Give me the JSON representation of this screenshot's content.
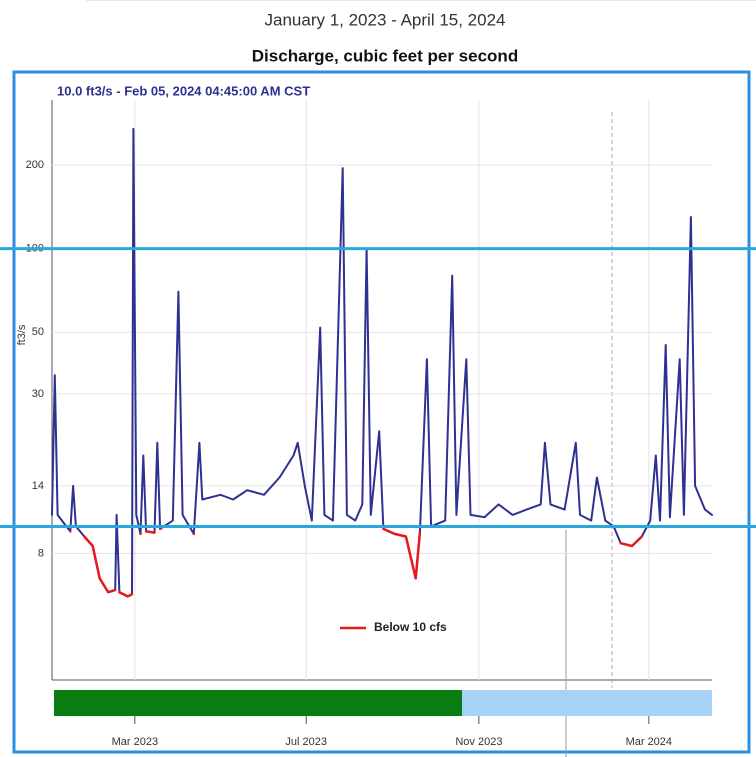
{
  "chart_data": {
    "type": "line",
    "title": "January 1, 2023 - April 15, 2024",
    "subtitle": "Discharge, cubic feet per second",
    "annotation": "10.0 ft3/s - Feb 05, 2024 04:45:00 AM CST",
    "y_label": "ft3/s",
    "y_scale": "log",
    "grid": true,
    "legend": "bottom",
    "x": [
      "2023-01-01",
      "2023-01-03",
      "2023-01-05",
      "2023-01-10",
      "2023-01-14",
      "2023-01-16",
      "2023-01-18",
      "2023-01-24",
      "2023-01-30",
      "2023-02-04",
      "2023-02-10",
      "2023-02-15",
      "2023-02-16",
      "2023-02-18",
      "2023-02-24",
      "2023-02-27",
      "2023-02-28",
      "2023-03-02",
      "2023-03-05",
      "2023-03-07",
      "2023-03-09",
      "2023-03-15",
      "2023-03-17",
      "2023-03-19",
      "2023-03-28",
      "2023-04-01",
      "2023-04-04",
      "2023-04-12",
      "2023-04-16",
      "2023-04-18",
      "2023-05-01",
      "2023-05-10",
      "2023-05-20",
      "2023-06-01",
      "2023-06-12",
      "2023-06-22",
      "2023-06-25",
      "2023-06-30",
      "2023-07-05",
      "2023-07-11",
      "2023-07-14",
      "2023-07-20",
      "2023-07-27",
      "2023-07-30",
      "2023-08-05",
      "2023-08-10",
      "2023-08-13",
      "2023-08-16",
      "2023-08-22",
      "2023-08-25",
      "2023-09-02",
      "2023-09-10",
      "2023-09-17",
      "2023-09-20",
      "2023-09-25",
      "2023-09-28",
      "2023-10-08",
      "2023-10-13",
      "2023-10-16",
      "2023-10-23",
      "2023-10-26",
      "2023-11-05",
      "2023-11-15",
      "2023-11-25",
      "2023-12-05",
      "2023-12-15",
      "2023-12-18",
      "2023-12-22",
      "2024-01-01",
      "2024-01-09",
      "2024-01-12",
      "2024-01-20",
      "2024-01-24",
      "2024-01-30",
      "2024-02-05",
      "2024-02-10",
      "2024-02-18",
      "2024-02-25",
      "2024-03-02",
      "2024-03-06",
      "2024-03-09",
      "2024-03-13",
      "2024-03-16",
      "2024-03-23",
      "2024-03-26",
      "2024-03-31",
      "2024-04-03",
      "2024-04-10",
      "2024-04-15"
    ],
    "series": [
      {
        "color": "#2e3192",
        "values": [
          11,
          35,
          11,
          10.2,
          9.6,
          14,
          10,
          9.2,
          8.5,
          6.5,
          5.8,
          5.9,
          11,
          5.8,
          5.6,
          5.7,
          270,
          11,
          9.4,
          18,
          9.6,
          9.5,
          20,
          9.8,
          10.5,
          70,
          11,
          9.4,
          20,
          12.5,
          13,
          12.5,
          13.5,
          13,
          15,
          18,
          20,
          14,
          10.5,
          52,
          11,
          10.5,
          195,
          11,
          10.5,
          12,
          100,
          11,
          22,
          9.8,
          9.4,
          9.2,
          6.5,
          9.5,
          40,
          10,
          10.5,
          80,
          11,
          40,
          11,
          10.8,
          12,
          11,
          11.5,
          12,
          20,
          12,
          11.5,
          20,
          11,
          10.5,
          15,
          10.5,
          10,
          8.7,
          8.5,
          9.2,
          10.5,
          18,
          10.5,
          45,
          10.8,
          40,
          11,
          130,
          14,
          11.5,
          11
        ]
      },
      {
        "name": "Below 10 cfs",
        "color": "#e41a1c",
        "values": [
          null,
          null,
          null,
          null,
          9.6,
          null,
          null,
          9.2,
          8.5,
          6.5,
          5.8,
          5.9,
          null,
          5.8,
          5.6,
          5.7,
          null,
          null,
          9.4,
          null,
          9.6,
          9.5,
          null,
          9.8,
          null,
          null,
          null,
          9.4,
          null,
          null,
          null,
          null,
          null,
          null,
          null,
          null,
          null,
          null,
          null,
          null,
          null,
          null,
          null,
          null,
          null,
          null,
          null,
          null,
          null,
          9.8,
          9.4,
          9.2,
          6.5,
          9.5,
          null,
          null,
          null,
          null,
          null,
          null,
          null,
          null,
          null,
          null,
          null,
          null,
          null,
          null,
          null,
          null,
          null,
          null,
          null,
          null,
          null,
          8.7,
          8.5,
          9.2,
          null,
          null,
          null,
          null,
          null,
          null,
          null,
          null,
          null,
          null,
          null
        ]
      }
    ],
    "reference_lines": [
      100,
      10
    ],
    "reference_color": "#29a8e0",
    "xlim": [
      "2023-01-01",
      "2024-04-15"
    ],
    "xticks": [
      {
        "value": "2023-03-01",
        "label": "Mar 2023"
      },
      {
        "value": "2023-07-01",
        "label": "Jul 2023"
      },
      {
        "value": "2023-11-01",
        "label": "Nov 2023"
      },
      {
        "value": "2024-03-01",
        "label": "Mar 2024"
      }
    ],
    "ylim": [
      2.8,
      343
    ],
    "yticks": [
      8,
      14,
      30,
      50,
      100,
      200
    ]
  }
}
